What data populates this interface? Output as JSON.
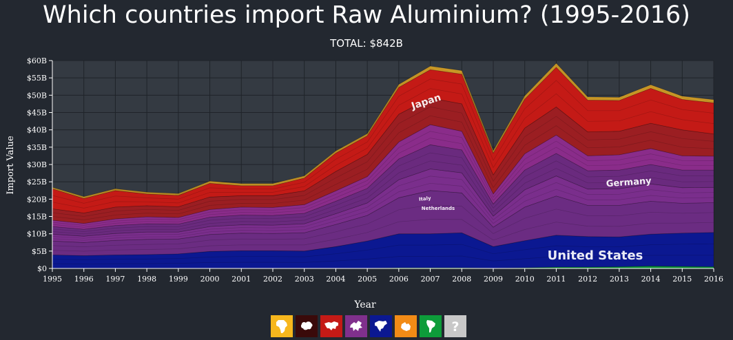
{
  "title": "Which countries import Raw Aluminium? (1995-2016)",
  "subtitle": "TOTAL: $842B",
  "chart_data": {
    "type": "area",
    "stacked": true,
    "x": [
      1995,
      1996,
      1997,
      1998,
      1999,
      2000,
      2001,
      2002,
      2003,
      2004,
      2005,
      2006,
      2007,
      2008,
      2009,
      2010,
      2011,
      2012,
      2013,
      2014,
      2015,
      2016
    ],
    "xlabel": "Year",
    "ylabel": "Import Value",
    "ylim": [
      0,
      60
    ],
    "yticks": [
      "$0",
      "$5B",
      "$10B",
      "$15B",
      "$20B",
      "$25B",
      "$30B",
      "$35B",
      "$40B",
      "$45B",
      "$50B",
      "$55B",
      "$60B"
    ],
    "grid": true,
    "series": [
      {
        "name": "",
        "color": "#0d9c3a",
        "values": [
          0.1,
          0.1,
          0.1,
          0.1,
          0.1,
          0.1,
          0.1,
          0.1,
          0.1,
          0.1,
          0.1,
          0.2,
          0.2,
          0.2,
          0.1,
          0.2,
          0.4,
          0.4,
          0.5,
          0.7,
          0.6,
          0.5
        ]
      },
      {
        "name": "United States",
        "color": "#0b1891",
        "values": [
          3.8,
          3.6,
          3.8,
          3.9,
          4.1,
          4.8,
          5.0,
          5.0,
          4.9,
          6.2,
          7.8,
          9.8,
          9.8,
          10.1,
          6.2,
          7.8,
          9.2,
          8.8,
          8.6,
          9.2,
          9.6,
          9.9
        ]
      },
      {
        "name": "Germany",
        "color": "#6b2c82",
        "values": [
          4.0,
          3.8,
          4.2,
          4.4,
          4.3,
          4.9,
          5.1,
          5.0,
          5.3,
          6.4,
          7.4,
          10.4,
          12.5,
          11.5,
          5.6,
          9.7,
          11.3,
          9.0,
          9.1,
          9.5,
          8.6,
          8.6
        ]
      },
      {
        "name": "Netherlands",
        "color": "#7a2e8c",
        "values": [
          2.0,
          1.8,
          2.0,
          2.1,
          2.0,
          2.3,
          2.4,
          2.4,
          2.6,
          3.1,
          3.6,
          5.2,
          6.2,
          5.8,
          3.2,
          5.0,
          5.8,
          4.7,
          4.8,
          5.0,
          4.5,
          4.4
        ]
      },
      {
        "name": "Italy",
        "color": "#6a2a7e",
        "values": [
          2.2,
          2.0,
          2.3,
          2.4,
          2.3,
          2.7,
          2.8,
          2.8,
          3.0,
          3.6,
          4.2,
          6.0,
          7.0,
          6.6,
          3.5,
          5.7,
          6.5,
          5.3,
          5.4,
          5.6,
          5.1,
          5.0
        ]
      },
      {
        "name": "",
        "color": "#8a2c8a",
        "values": [
          1.8,
          1.7,
          1.9,
          2.0,
          1.9,
          2.2,
          2.3,
          2.3,
          2.5,
          3.0,
          3.4,
          4.9,
          5.8,
          5.4,
          2.9,
          4.7,
          5.3,
          4.3,
          4.4,
          4.6,
          4.1,
          4.0
        ]
      },
      {
        "name": "",
        "color": "#9b1e22",
        "values": [
          3.3,
          3.0,
          3.4,
          3.2,
          3.1,
          3.6,
          3.3,
          3.4,
          4.0,
          5.6,
          6.4,
          8.0,
          7.7,
          7.9,
          5.5,
          7.4,
          8.1,
          6.9,
          6.8,
          7.3,
          7.5,
          6.4
        ]
      },
      {
        "name": "Japan",
        "color": "#c41a16",
        "values": [
          5.8,
          4.2,
          4.8,
          3.4,
          3.3,
          4.0,
          2.9,
          2.9,
          3.7,
          5.3,
          5.4,
          7.8,
          8.2,
          8.6,
          6.3,
          8.4,
          11.5,
          9.2,
          8.9,
          10.1,
          8.8,
          9.0
        ]
      },
      {
        "name": "",
        "color": "#d8a329",
        "values": [
          0.4,
          0.5,
          0.5,
          0.5,
          0.5,
          0.6,
          0.6,
          0.6,
          0.6,
          0.6,
          0.6,
          0.8,
          1.0,
          1.0,
          0.7,
          0.9,
          1.1,
          0.9,
          0.9,
          1.0,
          0.9,
          0.9
        ]
      }
    ],
    "annotations": [
      "United States",
      "Germany",
      "Japan",
      "Italy",
      "Netherlands"
    ]
  },
  "legend": [
    {
      "name": "africa",
      "color": "#f7b71d",
      "icon": "africa-icon"
    },
    {
      "name": "asia",
      "color": "#3a0a0a",
      "icon": "asia-icon"
    },
    {
      "name": "europe",
      "color": "#c41a16",
      "icon": "europe-icon"
    },
    {
      "name": "north-america-purple",
      "color": "#80308c",
      "icon": "europe-map-icon"
    },
    {
      "name": "north-america",
      "color": "#0b1891",
      "icon": "north-america-icon"
    },
    {
      "name": "oceania",
      "color": "#f28b16",
      "icon": "oceania-icon"
    },
    {
      "name": "south-america",
      "color": "#0d9c3a",
      "icon": "south-america-icon"
    },
    {
      "name": "unknown",
      "color": "#c8c8c8",
      "icon": "question-icon"
    }
  ]
}
